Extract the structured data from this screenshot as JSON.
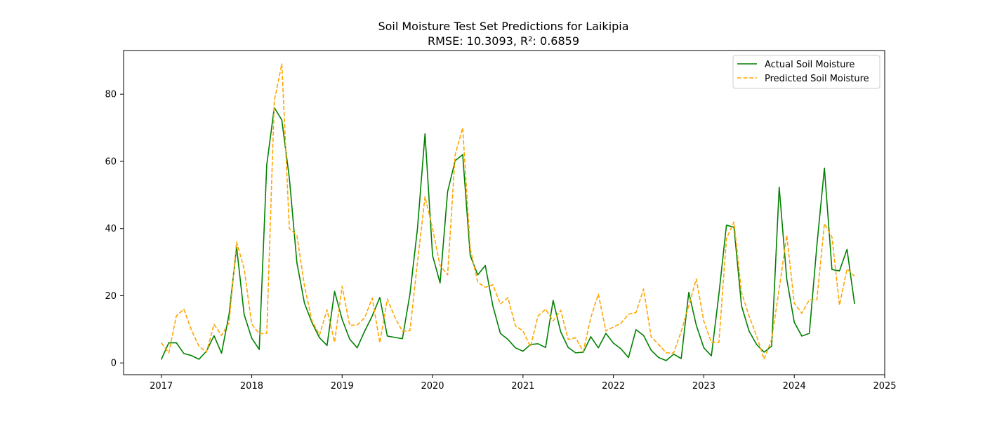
{
  "chart_data": {
    "type": "line",
    "title": "Soil Moisture Test Set Predictions for Laikipia",
    "subtitle": "RMSE: 10.3093, R²: 0.6859",
    "xlabel": "",
    "ylabel": "",
    "xlim": [
      "2016-08-01",
      "2025-01-01"
    ],
    "ylim": [
      -3.5,
      93
    ],
    "x_ticks": [
      "2017",
      "2018",
      "2019",
      "2020",
      "2021",
      "2022",
      "2023",
      "2024",
      "2025"
    ],
    "y_ticks": [
      0,
      20,
      40,
      60,
      80
    ],
    "grid": false,
    "legend_position": "top-right",
    "x": [
      "2017-01",
      "2017-02",
      "2017-03",
      "2017-04",
      "2017-05",
      "2017-06",
      "2017-07",
      "2017-08",
      "2017-09",
      "2017-10",
      "2017-11",
      "2017-12",
      "2018-01",
      "2018-02",
      "2018-03",
      "2018-04",
      "2018-05",
      "2018-06",
      "2018-07",
      "2018-08",
      "2018-09",
      "2018-10",
      "2018-11",
      "2018-12",
      "2019-01",
      "2019-02",
      "2019-03",
      "2019-04",
      "2019-05",
      "2019-06",
      "2019-07",
      "2019-08",
      "2019-09",
      "2019-10",
      "2019-11",
      "2019-12",
      "2020-01",
      "2020-02",
      "2020-03",
      "2020-04",
      "2020-05",
      "2020-06",
      "2020-07",
      "2020-08",
      "2020-09",
      "2020-10",
      "2020-11",
      "2020-12",
      "2021-01",
      "2021-02",
      "2021-03",
      "2021-04",
      "2021-05",
      "2021-06",
      "2021-07",
      "2021-08",
      "2021-09",
      "2021-10",
      "2021-11",
      "2021-12",
      "2022-01",
      "2022-02",
      "2022-03",
      "2022-04",
      "2022-05",
      "2022-06",
      "2022-07",
      "2022-08",
      "2022-09",
      "2022-10",
      "2022-11",
      "2022-12",
      "2023-01",
      "2023-02",
      "2023-03",
      "2023-04",
      "2023-05",
      "2023-06",
      "2023-07",
      "2023-08",
      "2023-09",
      "2023-10",
      "2023-11",
      "2023-12",
      "2024-01",
      "2024-02",
      "2024-03",
      "2024-04",
      "2024-05",
      "2024-06",
      "2024-07",
      "2024-08",
      "2024-09"
    ],
    "series": [
      {
        "name": "Actual Soil Moisture",
        "color": "#008000",
        "dash": "solid",
        "values": [
          1,
          6,
          6,
          2.8,
          2.2,
          1.1,
          3.5,
          8.1,
          2.9,
          14.5,
          34.5,
          14.4,
          7.4,
          4,
          59,
          76,
          72.3,
          55,
          29.8,
          17.8,
          12,
          7.5,
          5.2,
          21.3,
          13,
          7.1,
          4.5,
          9.5,
          14,
          19.5,
          8,
          7.6,
          7.2,
          20.5,
          40,
          68.2,
          32,
          23.8,
          51,
          60.2,
          62,
          32,
          26.2,
          29,
          17,
          8.8,
          7,
          4.5,
          3.5,
          5.5,
          5.7,
          4.6,
          18.6,
          9.3,
          4.6,
          3,
          3.2,
          7.8,
          4.5,
          8.8,
          5.9,
          4.2,
          1.6,
          9.9,
          8.2,
          3.8,
          1.6,
          0.7,
          2.6,
          1.3,
          21,
          11.2,
          4.5,
          2.1,
          20.5,
          41,
          40.4,
          17,
          9.5,
          5.5,
          3.2,
          5,
          52.3,
          25,
          12.1,
          8,
          8.8,
          35,
          58,
          27.8,
          27.4,
          33.8,
          17.6
        ]
      },
      {
        "name": "Predicted Soil Moisture",
        "color": "#FFA500",
        "dash": "dashed",
        "values": [
          6,
          3,
          14,
          16,
          9.8,
          5,
          3.2,
          11.5,
          8.2,
          12,
          36,
          28,
          11.6,
          8.7,
          8.8,
          78,
          89,
          40,
          38,
          23,
          12.5,
          8.3,
          15.8,
          6.2,
          22.8,
          11.2,
          11.3,
          13.5,
          19.3,
          6,
          19,
          13.6,
          9.4,
          9.6,
          30,
          49.5,
          40,
          29,
          26.2,
          62,
          70,
          34,
          24,
          22.5,
          23.3,
          17.5,
          19.4,
          11,
          9.5,
          4.8,
          14,
          16,
          12.5,
          15.7,
          7,
          7.5,
          3.4,
          13.5,
          20.5,
          9.5,
          10.7,
          11.8,
          14.5,
          15,
          22,
          7.8,
          5.5,
          3,
          3,
          9.4,
          17,
          25,
          12.4,
          6.1,
          6.1,
          37,
          42,
          21,
          14,
          8,
          1.1,
          7,
          22,
          38,
          17.8,
          14.8,
          18.8,
          18.8,
          41.5,
          37.5,
          17.2,
          28,
          25.8
        ]
      }
    ]
  }
}
